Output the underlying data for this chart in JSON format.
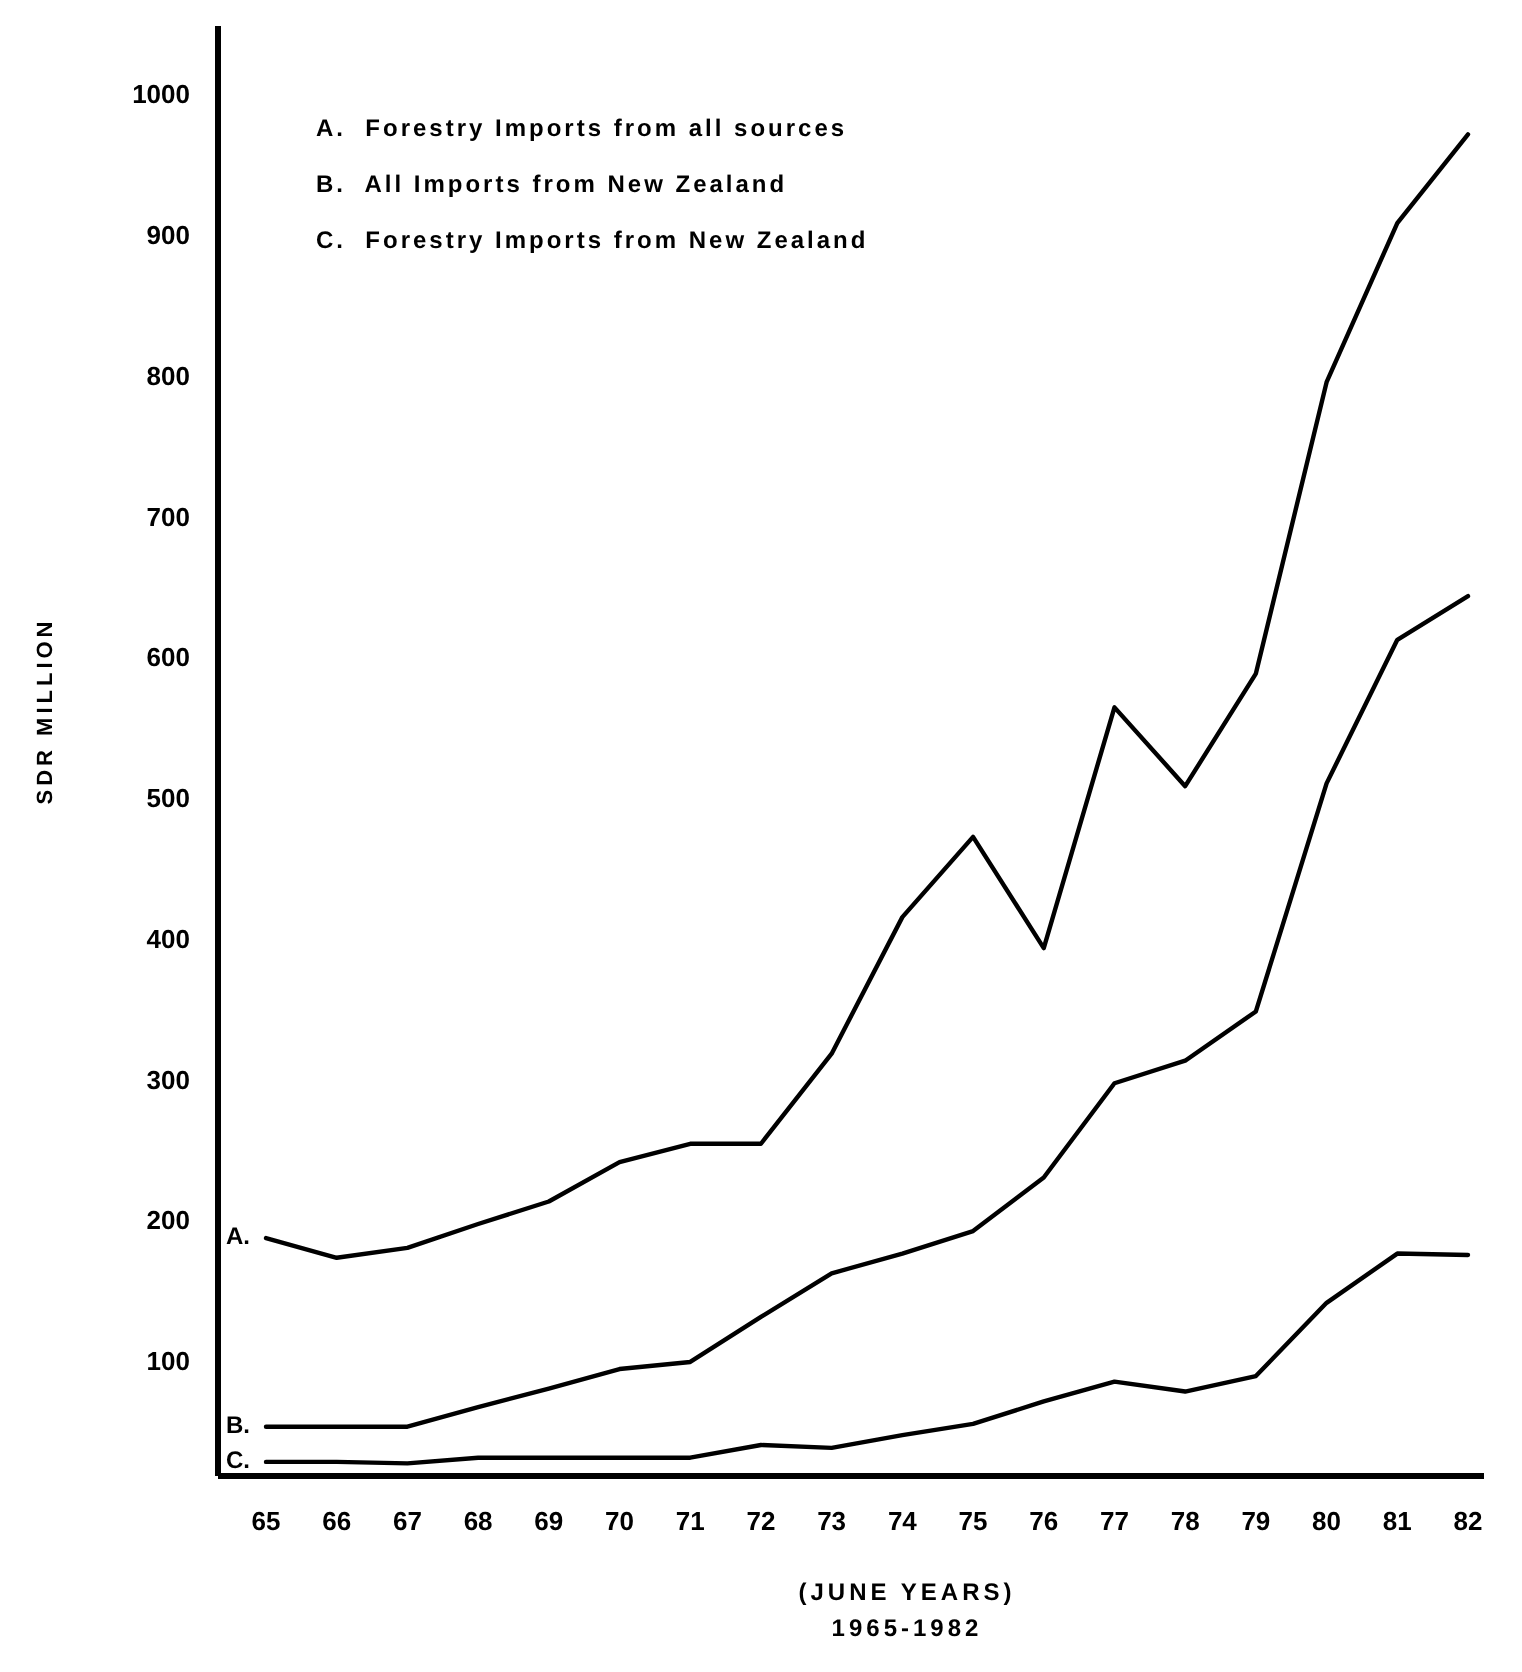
{
  "chart_data": {
    "type": "line",
    "ylabel": "SDR MILLION",
    "xlabel": "(JUNE YEARS)",
    "categories": [
      "65",
      "66",
      "67",
      "68",
      "69",
      "70",
      "71",
      "72",
      "73",
      "74",
      "75",
      "76",
      "77",
      "78",
      "79",
      "80",
      "81",
      "82"
    ],
    "series": [
      {
        "name": "A.",
        "color": "#000000",
        "values": [
          189,
          175,
          182,
          199,
          215,
          243,
          256,
          256,
          320,
          417,
          474,
          395,
          566,
          510,
          590,
          797,
          910,
          973
        ]
      },
      {
        "name": "B.",
        "color": "#000000",
        "values": [
          55,
          55,
          55,
          69,
          82,
          96,
          101,
          133,
          164,
          178,
          194,
          232,
          299,
          315,
          350,
          512,
          614,
          645
        ]
      },
      {
        "name": "C.",
        "color": "#000000",
        "values": [
          30,
          30,
          29,
          33,
          33,
          33,
          33,
          42,
          40,
          49,
          57,
          73,
          87,
          80,
          91,
          143,
          178,
          177
        ]
      }
    ],
    "ylim": [
      20,
      1050
    ],
    "yticks": [
      100,
      200,
      300,
      400,
      500,
      600,
      700,
      800,
      900,
      1000
    ],
    "grid": false,
    "marker": "none",
    "line_style": "solid",
    "annotations": [
      "A.  Forestry Imports from all sources",
      "B.  All Imports from New Zealand",
      "C.  Forestry Imports from New Zealand",
      "1965-1982"
    ]
  }
}
